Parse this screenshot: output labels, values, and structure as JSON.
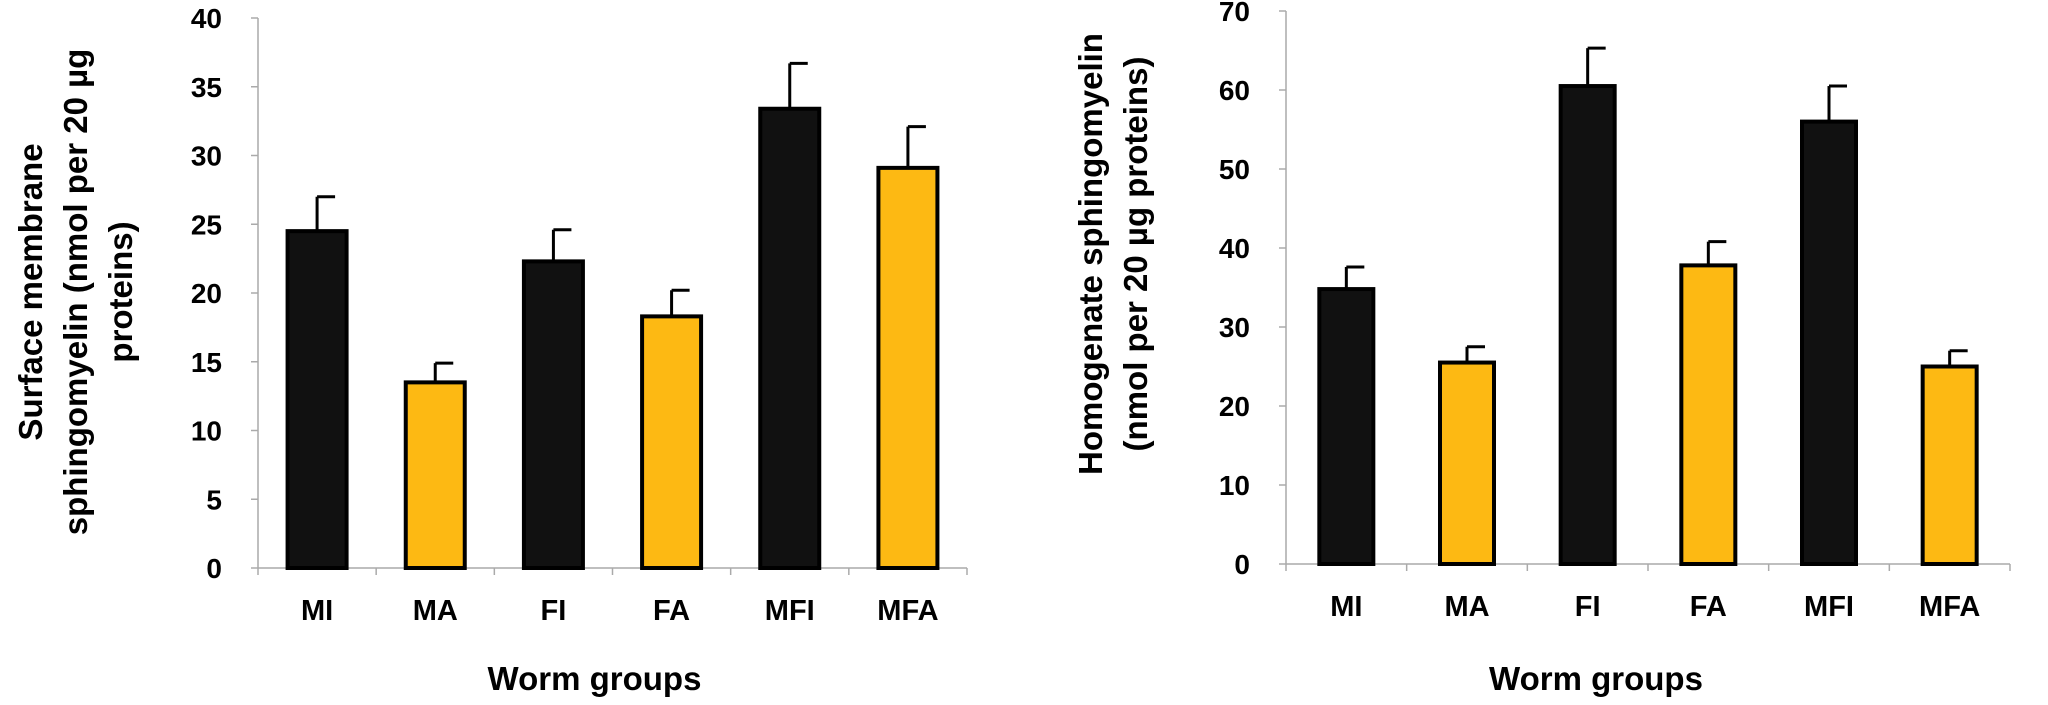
{
  "colors": {
    "dark_bar": "#111111",
    "yellow_bar": "#FDB913",
    "axis": "#aaaaaa",
    "text": "#000000"
  },
  "chart_data": [
    {
      "type": "bar",
      "title": "",
      "xlabel": "Worm groups",
      "ylabel_lines": [
        "Surface membrane",
        "sphingomyelin (nmol per 20 µg",
        "proteins)"
      ],
      "categories": [
        "MI",
        "MA",
        "FI",
        "FA",
        "MFI",
        "MFA"
      ],
      "values": [
        24.5,
        13.5,
        22.3,
        18.3,
        33.4,
        29.1
      ],
      "errors": [
        2.5,
        1.4,
        2.3,
        1.9,
        3.3,
        3.0
      ],
      "bar_colors": [
        "dark",
        "yellow",
        "dark",
        "yellow",
        "dark",
        "yellow"
      ],
      "ylim": [
        0,
        40
      ],
      "yticks": [
        0,
        5,
        10,
        15,
        20,
        25,
        30,
        35,
        40
      ],
      "grid": false
    },
    {
      "type": "bar",
      "title": "",
      "xlabel": "Worm groups",
      "ylabel_lines": [
        "Homogenate sphingomyelin",
        "(nmol per 20 µg proteins)"
      ],
      "categories": [
        "MI",
        "MA",
        "FI",
        "FA",
        "MFI",
        "MFA"
      ],
      "values": [
        34.8,
        25.5,
        60.5,
        37.8,
        56.0,
        25.0
      ],
      "errors": [
        2.8,
        2.0,
        4.8,
        3.0,
        4.5,
        2.0
      ],
      "bar_colors": [
        "dark",
        "yellow",
        "dark",
        "yellow",
        "dark",
        "yellow"
      ],
      "ylim": [
        0,
        70
      ],
      "yticks": [
        0,
        10,
        20,
        30,
        40,
        50,
        60,
        70
      ],
      "grid": false
    }
  ]
}
